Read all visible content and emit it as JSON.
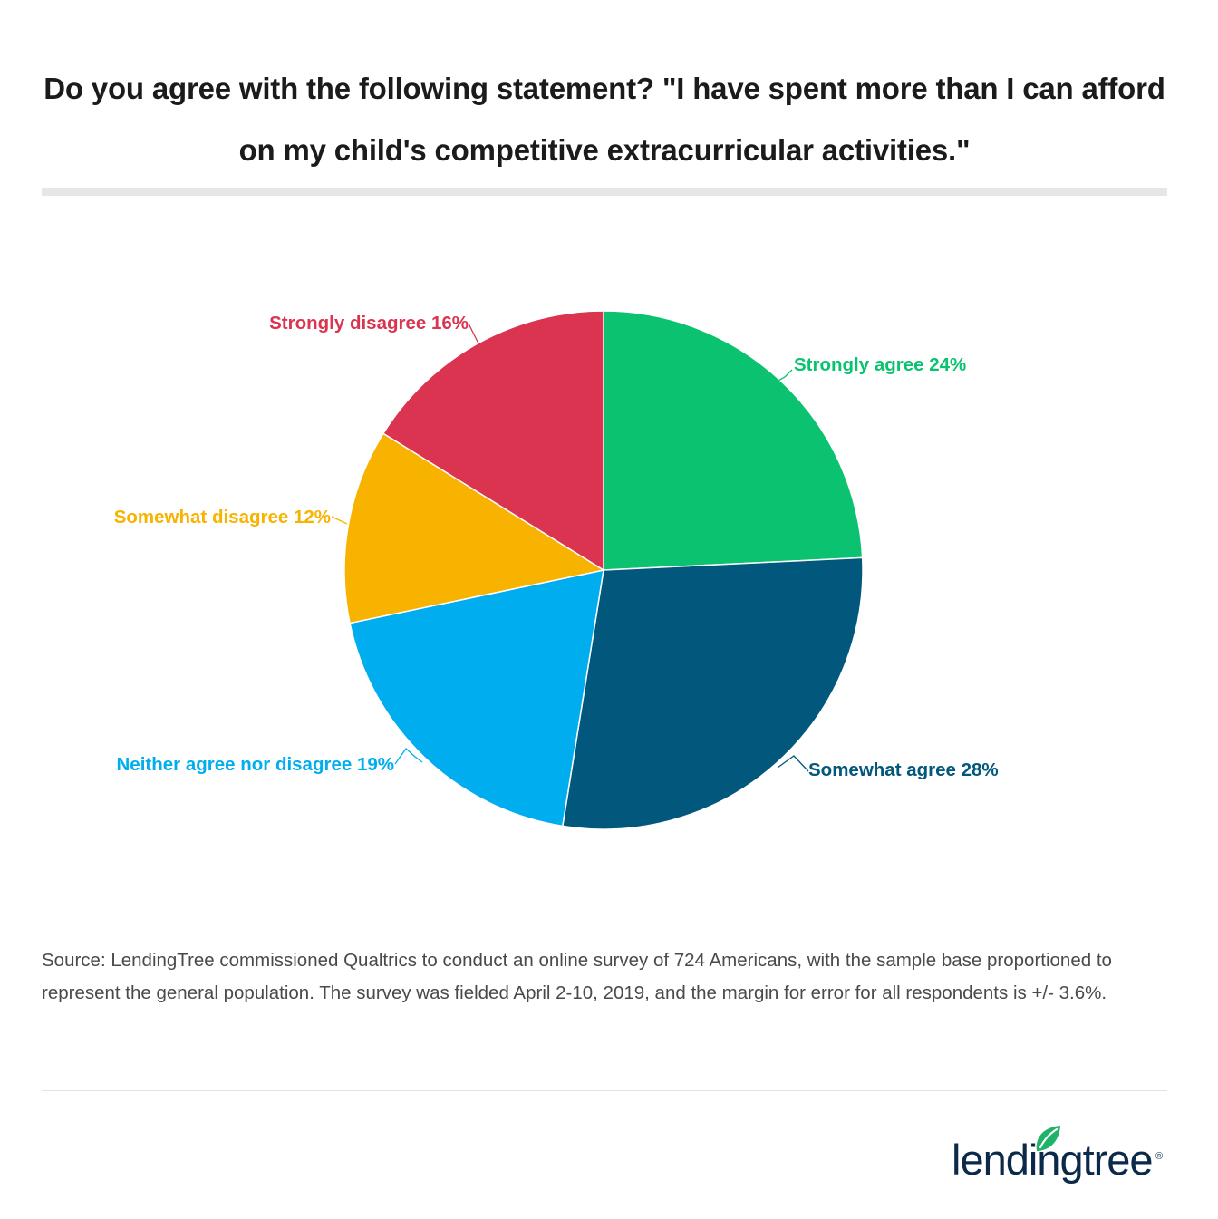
{
  "chart_data": {
    "type": "pie",
    "title": "Do you agree with the following statement? \"I have spent more than I can afford on my child's competitive extracurricular activities.\"",
    "slices": [
      {
        "label": "Strongly agree 24%",
        "value": 24,
        "color": "#0bc270"
      },
      {
        "label": "Somewhat agree 28%",
        "value": 28,
        "color": "#02587c"
      },
      {
        "label": "Neither agree nor disagree 19%",
        "value": 19,
        "color": "#00adee"
      },
      {
        "label": "Somewhat disagree 12%",
        "value": 12,
        "color": "#f8b301"
      },
      {
        "label": "Strongly disagree 16%",
        "value": 16,
        "color": "#db3450"
      }
    ],
    "start_angle_deg": 0,
    "direction": "clockwise",
    "labels_outside": true
  },
  "source_note": "Source: LendingTree commissioned Qualtrics to conduct an online survey of 724 Americans, with the sample base proportioned to represent the general population. The survey was fielded April 2-10, 2019, and the margin for error for all respondents is +/- 3.6%.",
  "logo": {
    "text": "lendingtree",
    "registered": "®",
    "leaf_color": "#1fb36a",
    "text_color": "#0b2a4a"
  }
}
